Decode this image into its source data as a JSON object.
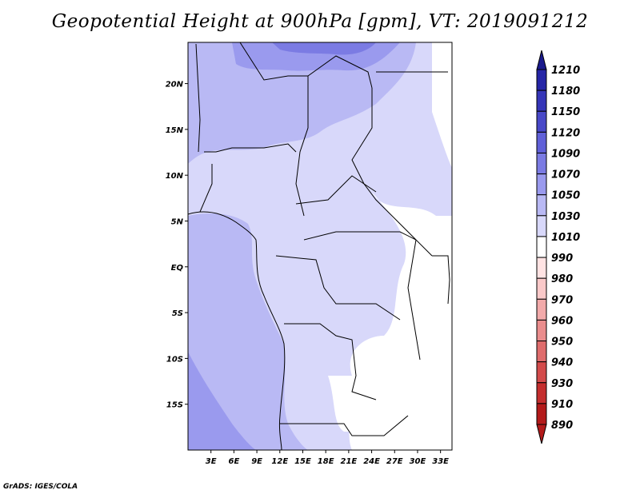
{
  "chart_data": {
    "type": "heatmap",
    "title": "Geopotential Height at 900hPa [gpm], VT: 2019091212",
    "variable": "Geopotential Height",
    "level": "900hPa",
    "units": "gpm",
    "valid_time": "2019091212",
    "x_ticks": [
      "3E",
      "6E",
      "9E",
      "12E",
      "15E",
      "18E",
      "21E",
      "24E",
      "27E",
      "30E",
      "33E"
    ],
    "x_tick_values": [
      3,
      6,
      9,
      12,
      15,
      18,
      21,
      24,
      27,
      30,
      33
    ],
    "y_ticks": [
      "20N",
      "15N",
      "10N",
      "5N",
      "EQ",
      "5S",
      "10S",
      "15S"
    ],
    "y_tick_values": [
      20,
      15,
      10,
      5,
      0,
      -5,
      -10,
      -15
    ],
    "xlim": [
      0.0,
      34.5
    ],
    "ylim": [
      -20.0,
      24.5
    ],
    "colorbar": {
      "levels": [
        1210,
        1180,
        1150,
        1120,
        1090,
        1070,
        1050,
        1030,
        1010,
        990,
        980,
        970,
        960,
        950,
        940,
        930,
        910,
        890
      ],
      "colors": [
        "#1a1a8c",
        "#2525a6",
        "#3535b8",
        "#4848c8",
        "#6060d8",
        "#7b7be3",
        "#9a9aee",
        "#b9b9f4",
        "#d8d8fa",
        "#ffffff",
        "#ffe3e3",
        "#fac9c9",
        "#f2aaaa",
        "#ea8d8d",
        "#df6c6c",
        "#d34b4b",
        "#c42e2e",
        "#b31a1a"
      ],
      "extend": "both"
    }
  },
  "credit": "GrADS: IGES/COLA"
}
